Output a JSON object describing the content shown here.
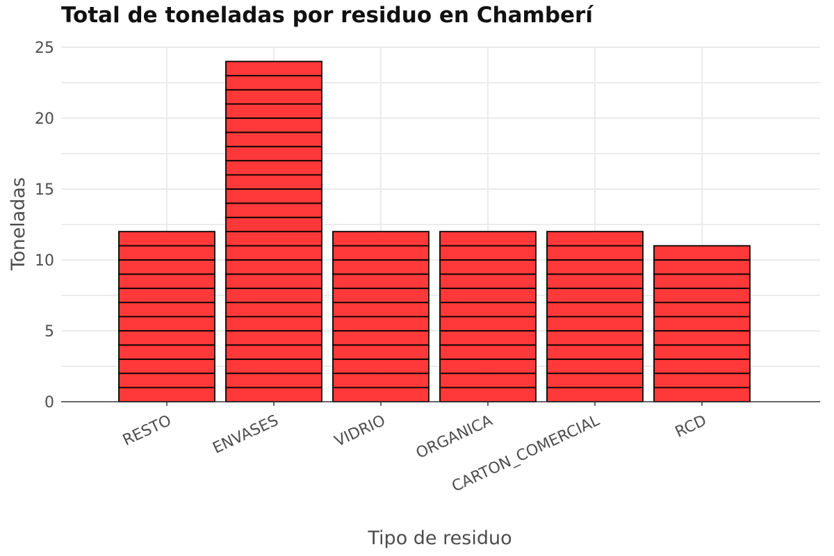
{
  "chart_data": {
    "type": "bar",
    "title": "Total de toneladas por residuo en Chamberí",
    "xlabel": "Tipo de residuo",
    "ylabel": "Toneladas",
    "categories": [
      "RESTO",
      "ENVASES",
      "VIDRIO",
      "ORGANICA",
      "CARTON_COMERCIAL",
      "RCD"
    ],
    "values": [
      12,
      24,
      12,
      12,
      12,
      11
    ],
    "ylim": [
      0,
      25
    ],
    "yticks": [
      "0",
      "5",
      "10",
      "15",
      "20",
      "25"
    ],
    "grid": true,
    "legend": "none",
    "bar_segments_unit": 1,
    "colors": {
      "bar_fill": "#ff3333",
      "bar_stroke": "#000000",
      "grid": "#ebebeb"
    }
  }
}
